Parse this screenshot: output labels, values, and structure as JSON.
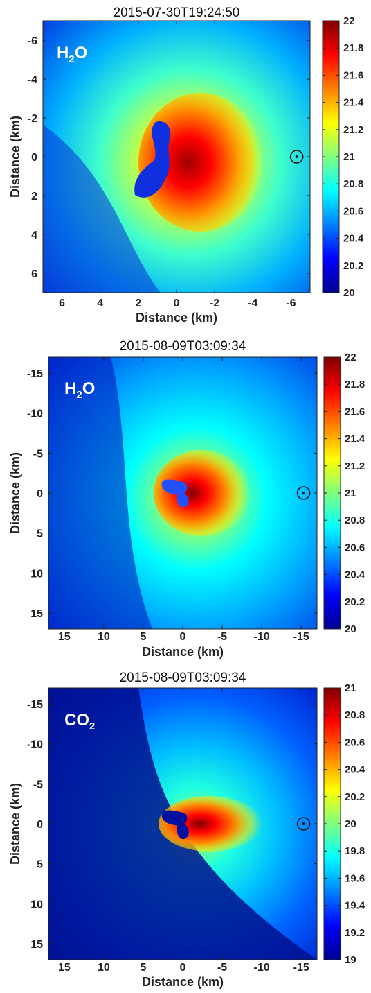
{
  "colorscale": [
    "#00008f",
    "#0000ff",
    "#0080ff",
    "#00ffff",
    "#80ff80",
    "#ffff00",
    "#ff8000",
    "#ff0000",
    "#800000"
  ],
  "chart_data": [
    {
      "type": "heatmap",
      "title": "2015-07-30T19:24:50",
      "species": {
        "main": "H",
        "sub": "2",
        "tail": "O"
      },
      "xlabel": "Distance (km)",
      "ylabel": "Distance (km)",
      "xlim": [
        7,
        -7
      ],
      "ylim": [
        -7,
        7
      ],
      "xticks": [
        6,
        4,
        2,
        0,
        -2,
        -4,
        -6
      ],
      "xticklabels": [
        "6",
        "4",
        "2",
        "0",
        "-2",
        "-4",
        "-6"
      ],
      "yticks": [
        -6,
        -4,
        -2,
        0,
        2,
        4,
        6
      ],
      "yticklabels": [
        "-6",
        "-4",
        "-2",
        "0",
        "2",
        "4",
        "6"
      ],
      "colorbar": {
        "min": 20,
        "max": 22,
        "ticks": [
          20,
          20.2,
          20.4,
          20.6,
          20.8,
          21,
          21.2,
          21.4,
          21.6,
          21.8,
          22
        ],
        "ticklabels": [
          "20",
          "20.2",
          "20.4",
          "20.6",
          "20.8",
          "21",
          "21.2",
          "21.4",
          "21.6",
          "21.8",
          "22"
        ]
      },
      "sun_symbol": {
        "x": -6.3,
        "y": 0
      },
      "grid": false
    },
    {
      "type": "heatmap",
      "title": "2015-08-09T03:09:34",
      "species": {
        "main": "H",
        "sub": "2",
        "tail": "O"
      },
      "xlabel": "Distance (km)",
      "ylabel": "Distance (km)",
      "xlim": [
        17,
        -17
      ],
      "ylim": [
        -17,
        17
      ],
      "xticks": [
        15,
        10,
        5,
        0,
        -5,
        -10,
        -15
      ],
      "xticklabels": [
        "15",
        "10",
        "5",
        "0",
        "-5",
        "-10",
        "-15"
      ],
      "yticks": [
        -15,
        -10,
        -5,
        0,
        5,
        10,
        15
      ],
      "yticklabels": [
        "-15",
        "-10",
        "-5",
        "0",
        "5",
        "10",
        "15"
      ],
      "colorbar": {
        "min": 20,
        "max": 22,
        "ticks": [
          20,
          20.2,
          20.4,
          20.6,
          20.8,
          21,
          21.2,
          21.4,
          21.6,
          21.8,
          22
        ],
        "ticklabels": [
          "20",
          "20.2",
          "20.4",
          "20.6",
          "20.8",
          "21",
          "21.2",
          "21.4",
          "21.6",
          "21.8",
          "22"
        ]
      },
      "sun_symbol": {
        "x": -15.3,
        "y": 0
      },
      "grid": false
    },
    {
      "type": "heatmap",
      "title": "2015-08-09T03:09:34",
      "species": {
        "main": "CO",
        "sub": "2",
        "tail": ""
      },
      "xlabel": "Distance (km)",
      "ylabel": "Distance (km)",
      "xlim": [
        17,
        -17
      ],
      "ylim": [
        -17,
        17
      ],
      "xticks": [
        15,
        10,
        5,
        0,
        -5,
        -10,
        -15
      ],
      "xticklabels": [
        "15",
        "10",
        "5",
        "0",
        "-5",
        "-10",
        "-15"
      ],
      "yticks": [
        -15,
        -10,
        -5,
        0,
        5,
        10,
        15
      ],
      "yticklabels": [
        "-15",
        "-10",
        "-5",
        "0",
        "5",
        "10",
        "15"
      ],
      "colorbar": {
        "min": 19,
        "max": 21,
        "ticks": [
          19,
          19.2,
          19.4,
          19.6,
          19.8,
          20,
          20.2,
          20.4,
          20.6,
          20.8,
          21
        ],
        "ticklabels": [
          "19",
          "19.2",
          "19.4",
          "19.6",
          "19.8",
          "20",
          "20.2",
          "20.4",
          "20.6",
          "20.8",
          "21"
        ]
      },
      "sun_symbol": {
        "x": -15.3,
        "y": 0
      },
      "grid": false
    }
  ]
}
